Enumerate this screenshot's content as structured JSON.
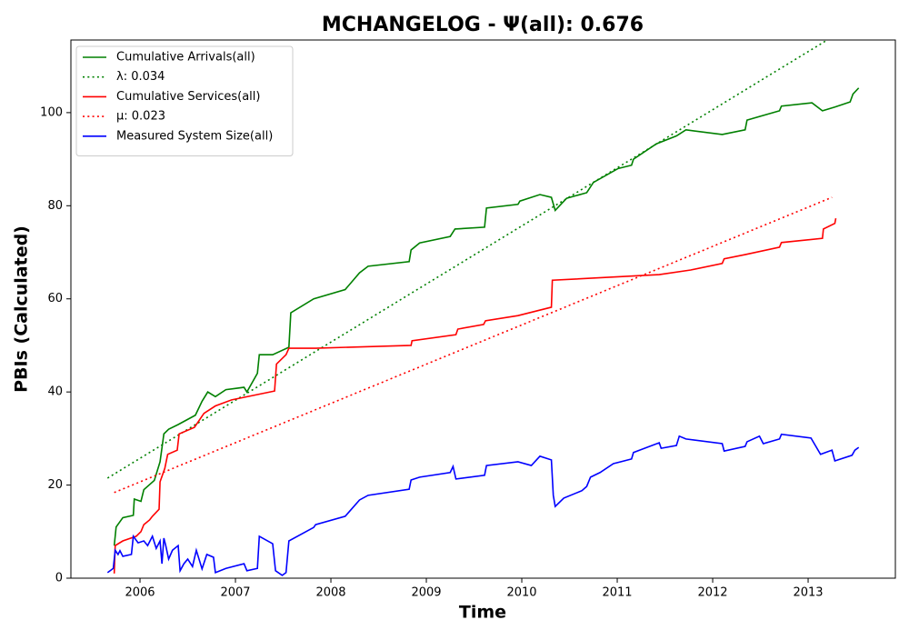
{
  "chart_data": {
    "type": "line",
    "title": "MCHANGELOG -  Ψ(all): 0.676",
    "xlabel": "Time",
    "ylabel": "PBIs (Calculated)",
    "xlim": [
      2005.276,
      2013.914
    ],
    "ylim": [
      0,
      115.6
    ],
    "xticks": [
      2006,
      2007,
      2008,
      2009,
      2010,
      2011,
      2012,
      2013
    ],
    "yticks": [
      0,
      20,
      40,
      60,
      80,
      100
    ],
    "grid": false,
    "legend": "upper left",
    "series": [
      {
        "name": "Cumulative Arrivals(all)",
        "color": "#008000",
        "linestyle": "solid",
        "x": [
          2005.73,
          2005.75,
          2005.82,
          2005.93,
          2005.94,
          2006.01,
          2006.04,
          2006.15,
          2006.21,
          2006.25,
          2006.3,
          2006.4,
          2006.49,
          2006.58,
          2006.65,
          2006.71,
          2006.79,
          2006.9,
          2007.09,
          2007.12,
          2007.23,
          2007.25,
          2007.39,
          2007.56,
          2007.58,
          2007.82,
          2008.15,
          2008.3,
          2008.39,
          2008.82,
          2008.84,
          2008.93,
          2009.25,
          2009.3,
          2009.61,
          2009.63,
          2009.96,
          2009.98,
          2010.19,
          2010.31,
          2010.35,
          2010.47,
          2010.68,
          2010.75,
          2011.01,
          2011.15,
          2011.17,
          2011.41,
          2011.62,
          2011.72,
          2012.1,
          2012.34,
          2012.36,
          2012.7,
          2012.72,
          2013.04,
          2013.15,
          2013.28,
          2013.44,
          2013.47,
          2013.53
        ],
        "values": [
          7,
          11,
          13,
          13.5,
          17,
          16.5,
          19,
          21,
          25,
          31,
          32,
          33,
          34,
          35,
          38,
          40,
          39,
          40.5,
          41,
          40,
          44,
          48,
          48,
          49.6,
          57,
          60,
          62,
          65.6,
          67,
          68,
          70.5,
          72,
          73.4,
          75,
          75.4,
          79.5,
          80.3,
          81,
          82.4,
          81.8,
          79,
          81.6,
          82.8,
          85,
          88,
          88.7,
          90,
          93.3,
          95,
          96.3,
          95.3,
          96.3,
          98.4,
          100.4,
          101.4,
          102.1,
          100.4,
          101.2,
          102.3,
          104,
          105.3
        ]
      },
      {
        "name": "λ: 0.034",
        "color": "#008000",
        "linestyle": "dotted",
        "x": [
          2005.66,
          2013.2
        ],
        "values": [
          21.5,
          115.6
        ]
      },
      {
        "name": "Cumulative Services(all)",
        "color": "#ff0000",
        "linestyle": "solid",
        "x": [
          2005.73,
          2005.74,
          2005.82,
          2005.96,
          2006.01,
          2006.04,
          2006.1,
          2006.13,
          2006.2,
          2006.21,
          2006.26,
          2006.29,
          2006.39,
          2006.41,
          2006.57,
          2006.67,
          2006.79,
          2006.96,
          2007.41,
          2007.43,
          2007.53,
          2007.56,
          2007.84,
          2008.84,
          2008.85,
          2009.31,
          2009.33,
          2009.6,
          2009.62,
          2009.96,
          2010.31,
          2010.32,
          2011.44,
          2011.77,
          2012.1,
          2012.12,
          2012.34,
          2012.7,
          2012.72,
          2013.15,
          2013.16,
          2013.28,
          2013.29
        ],
        "values": [
          1,
          7,
          8,
          9,
          10,
          11.5,
          12.5,
          13.3,
          14.8,
          20.7,
          23.6,
          26.6,
          27.5,
          31,
          32.4,
          35.4,
          37,
          38.3,
          40.2,
          46,
          48,
          49.4,
          49.4,
          50,
          51,
          52.3,
          53.5,
          54.5,
          55.3,
          56.4,
          58.2,
          64,
          65.2,
          66.2,
          67.6,
          68.6,
          69.5,
          71.1,
          72.1,
          73,
          75,
          76.2,
          77.3
        ]
      },
      {
        "name": "μ: 0.023",
        "color": "#ff0000",
        "linestyle": "dotted",
        "x": [
          2005.73,
          2013.25
        ],
        "values": [
          18.4,
          81.8
        ]
      },
      {
        "name": "Measured System Size(all)",
        "color": "#0000ff",
        "linestyle": "solid",
        "x": [
          2005.66,
          2005.72,
          2005.74,
          2005.77,
          2005.79,
          2005.82,
          2005.91,
          2005.93,
          2005.98,
          2006.04,
          2006.08,
          2006.13,
          2006.17,
          2006.21,
          2006.23,
          2006.25,
          2006.27,
          2006.3,
          2006.34,
          2006.4,
          2006.42,
          2006.46,
          2006.5,
          2006.55,
          2006.59,
          2006.65,
          2006.7,
          2006.77,
          2006.79,
          2006.9,
          2007.09,
          2007.12,
          2007.23,
          2007.25,
          2007.39,
          2007.42,
          2007.49,
          2007.53,
          2007.56,
          2007.82,
          2007.84,
          2008.15,
          2008.3,
          2008.39,
          2008.82,
          2008.84,
          2008.93,
          2009.25,
          2009.28,
          2009.31,
          2009.61,
          2009.63,
          2009.96,
          2010.1,
          2010.19,
          2010.31,
          2010.33,
          2010.35,
          2010.44,
          2010.63,
          2010.68,
          2010.72,
          2010.82,
          2010.96,
          2011.15,
          2011.17,
          2011.44,
          2011.46,
          2011.62,
          2011.65,
          2011.72,
          2012.1,
          2012.12,
          2012.34,
          2012.36,
          2012.49,
          2012.53,
          2012.7,
          2012.72,
          2013.03,
          2013.13,
          2013.25,
          2013.28,
          2013.46,
          2013.49,
          2013.53
        ],
        "values": [
          1.2,
          2.1,
          6,
          5.1,
          5.9,
          4.7,
          5.1,
          9,
          7.6,
          8,
          7,
          9,
          6.4,
          8,
          3.1,
          8.6,
          7,
          4.1,
          6,
          7,
          1.6,
          3.1,
          4.1,
          2.5,
          6,
          2,
          5.1,
          4.5,
          1.2,
          2.1,
          3.1,
          1.6,
          2.1,
          9,
          7.4,
          1.6,
          0.6,
          1.2,
          8,
          10.9,
          11.5,
          13.3,
          16.8,
          17.8,
          19.1,
          21.1,
          21.7,
          22.7,
          24,
          21.3,
          22.1,
          24.2,
          25,
          24.2,
          26.2,
          25.4,
          17.8,
          15.4,
          17.2,
          18.8,
          19.7,
          21.7,
          22.7,
          24.6,
          25.6,
          27,
          29.1,
          27.9,
          28.5,
          30.5,
          29.9,
          28.9,
          27.3,
          28.3,
          29.3,
          30.5,
          28.9,
          29.9,
          30.9,
          30.1,
          26.6,
          27.5,
          25.2,
          26.4,
          27.5,
          28.1
        ]
      }
    ]
  }
}
